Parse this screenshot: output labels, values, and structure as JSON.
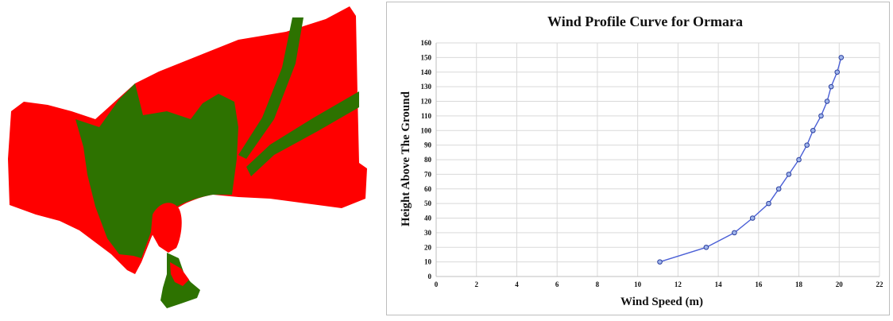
{
  "map": {
    "colors": {
      "zone_a": "#ff0000",
      "zone_b": "#2d7200"
    }
  },
  "chart_data": {
    "type": "line",
    "title": "Wind Profile Curve for Ormara",
    "xlabel": "Wind Speed (m)",
    "ylabel": "Height Above The Ground",
    "xlim": [
      0,
      22
    ],
    "ylim": [
      0,
      160
    ],
    "xticks": [
      0,
      2,
      4,
      6,
      8,
      10,
      12,
      14,
      16,
      18,
      20,
      22
    ],
    "yticks": [
      0,
      10,
      20,
      30,
      40,
      50,
      60,
      70,
      80,
      90,
      100,
      110,
      120,
      130,
      140,
      150,
      160
    ],
    "grid": true,
    "line_color": "#4a5fd6",
    "series": [
      {
        "x": [
          11.1,
          13.4,
          14.8,
          15.7,
          16.5,
          17.0,
          17.5,
          18.0,
          18.4,
          18.7,
          19.1,
          19.4,
          19.6,
          19.9,
          20.1
        ],
        "y": [
          10,
          20,
          30,
          40,
          50,
          60,
          70,
          80,
          90,
          100,
          110,
          120,
          130,
          140,
          150
        ]
      }
    ]
  }
}
